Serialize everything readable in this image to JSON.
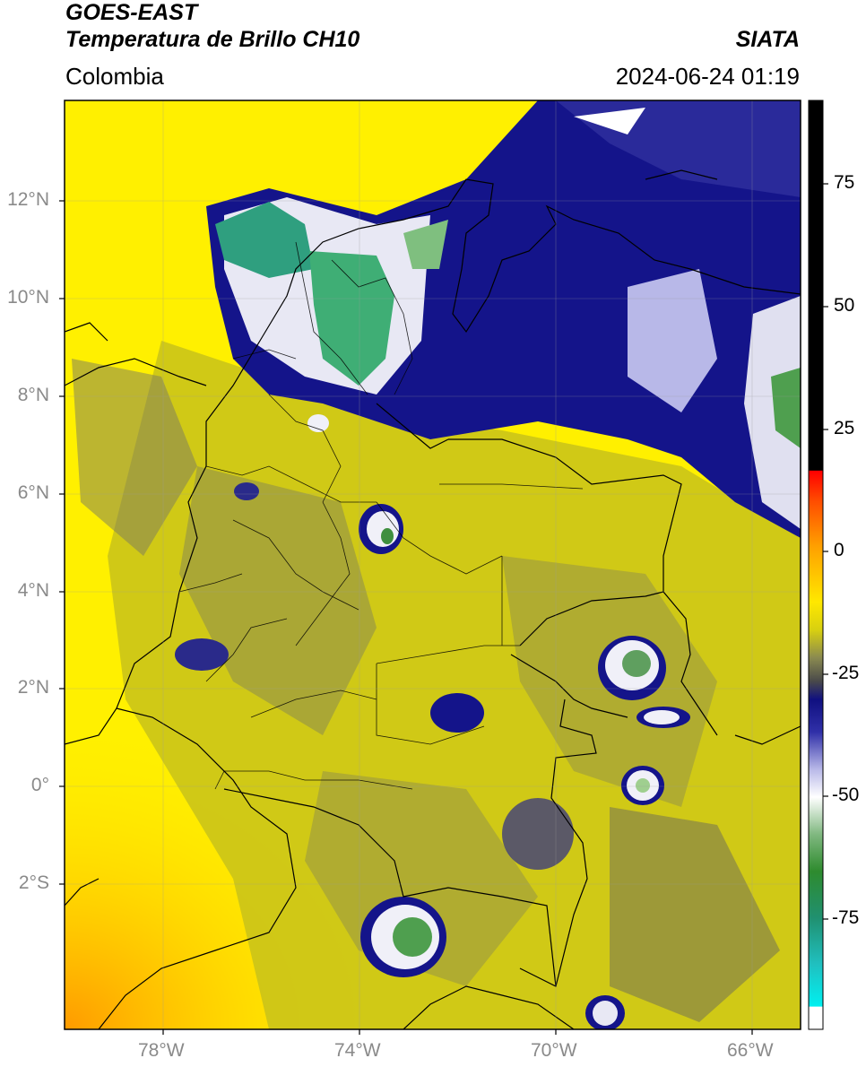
{
  "header": {
    "satellite": "GOES-EAST",
    "product": "Temperatura de Brillo CH10",
    "region": "Colombia",
    "source": "SIATA",
    "datetime": "2024-06-24 01:19"
  },
  "map": {
    "lon_range": [
      -80,
      -65
    ],
    "lat_range": [
      -5.1,
      14.0
    ],
    "lat_ticks": [
      "12°N",
      "10°N",
      "8°N",
      "6°N",
      "4°N",
      "2°N",
      "0°",
      "2°S"
    ],
    "lon_ticks": [
      "78°W",
      "74°W",
      "70°W",
      "66°W"
    ]
  },
  "colorbar": {
    "ticks": [
      "75",
      "50",
      "25",
      "0",
      "-25",
      "-50",
      "-75"
    ],
    "range": [
      -100,
      90
    ],
    "colors": {
      "black": "#000000",
      "red": "#ff2a00",
      "orange": "#ff9a00",
      "yellow": "#ffee00",
      "olive": "#c8c21a",
      "gray": "#5a5a5a",
      "navy": "#101080",
      "white": "#f5f5f5",
      "green": "#2e8b2e",
      "teal": "#20a090",
      "cyan": "#00e0e0"
    }
  }
}
